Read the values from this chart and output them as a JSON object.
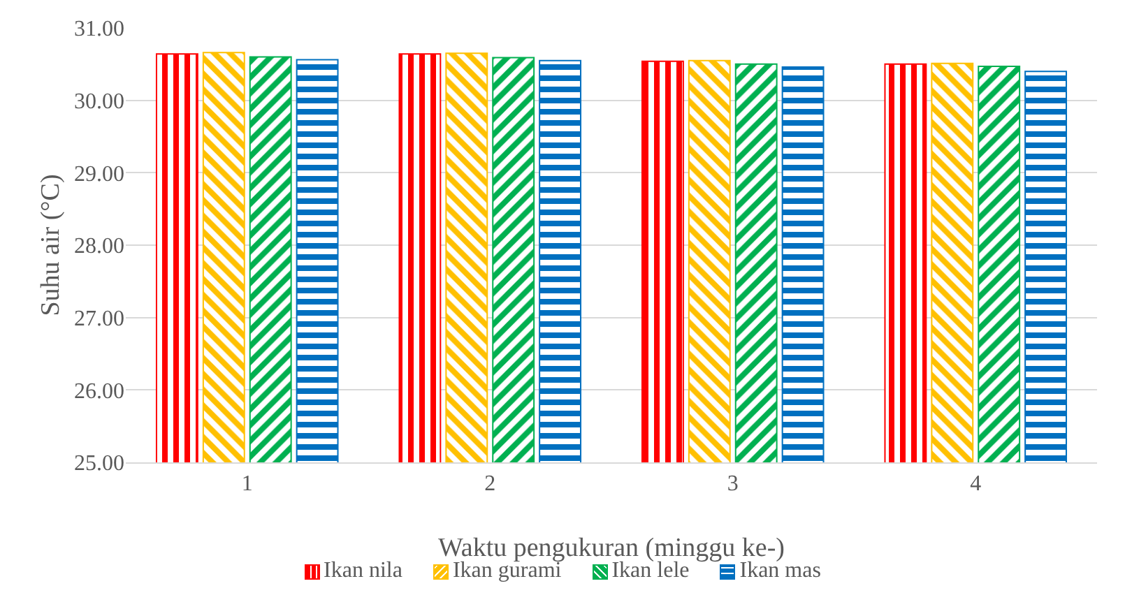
{
  "chart_data": {
    "type": "bar",
    "xlabel": "Waktu pengukuran (minggu ke-)",
    "ylabel": "Suhu air (°C)",
    "categories": [
      "1",
      "2",
      "3",
      "4"
    ],
    "series": [
      {
        "name": "Ikan nila",
        "color": "#ff0000",
        "values": [
          30.64,
          30.64,
          30.54,
          30.5
        ]
      },
      {
        "name": "Ikan gurami",
        "color": "#ffc000",
        "values": [
          30.66,
          30.65,
          30.55,
          30.51
        ]
      },
      {
        "name": "Ikan lele",
        "color": "#00b050",
        "values": [
          30.6,
          30.59,
          30.5,
          30.47
        ]
      },
      {
        "name": "Ikan mas",
        "color": "#0070c0",
        "values": [
          30.56,
          30.55,
          30.46,
          30.4
        ]
      }
    ],
    "ylim": [
      25,
      31
    ],
    "yticks": [
      {
        "value": 25,
        "label": "25.00"
      },
      {
        "value": 26,
        "label": "26.00"
      },
      {
        "value": 27,
        "label": "27.00"
      },
      {
        "value": 28,
        "label": "28.00"
      },
      {
        "value": 29,
        "label": "29.00"
      },
      {
        "value": 30,
        "label": "30.00"
      },
      {
        "value": 31,
        "label": "31.00"
      }
    ],
    "grid": "y",
    "legend": "bottom"
  }
}
